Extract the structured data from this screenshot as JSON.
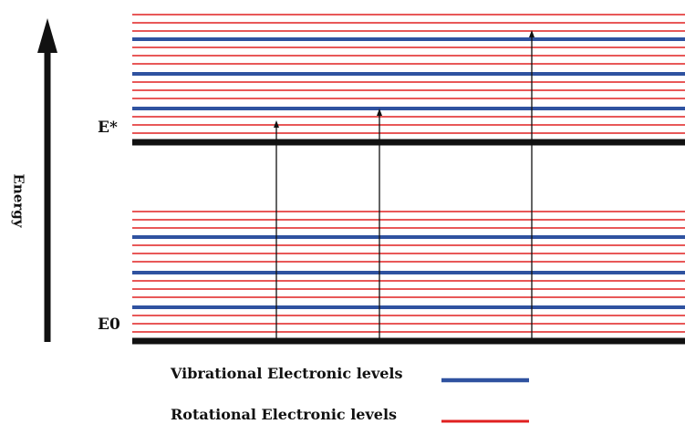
{
  "axis": {
    "label": "Energy"
  },
  "states": {
    "excited": {
      "label": "E*"
    },
    "ground": {
      "label": "E0"
    }
  },
  "legend": {
    "vibrational": {
      "label": "Vibrational Electronic levels",
      "color": "#2f52a0"
    },
    "rotational": {
      "label": "Rotational Electronic levels",
      "color": "#e02020"
    }
  },
  "colors": {
    "electronic": "#111111",
    "transition": "#111111"
  },
  "transitions": [
    {
      "from": "E0",
      "to_level": "E* rotational level"
    },
    {
      "from": "E0",
      "to_level": "E* vibrational level 1"
    },
    {
      "from": "E0",
      "to_level": "E* vibrational level 3"
    }
  ]
}
